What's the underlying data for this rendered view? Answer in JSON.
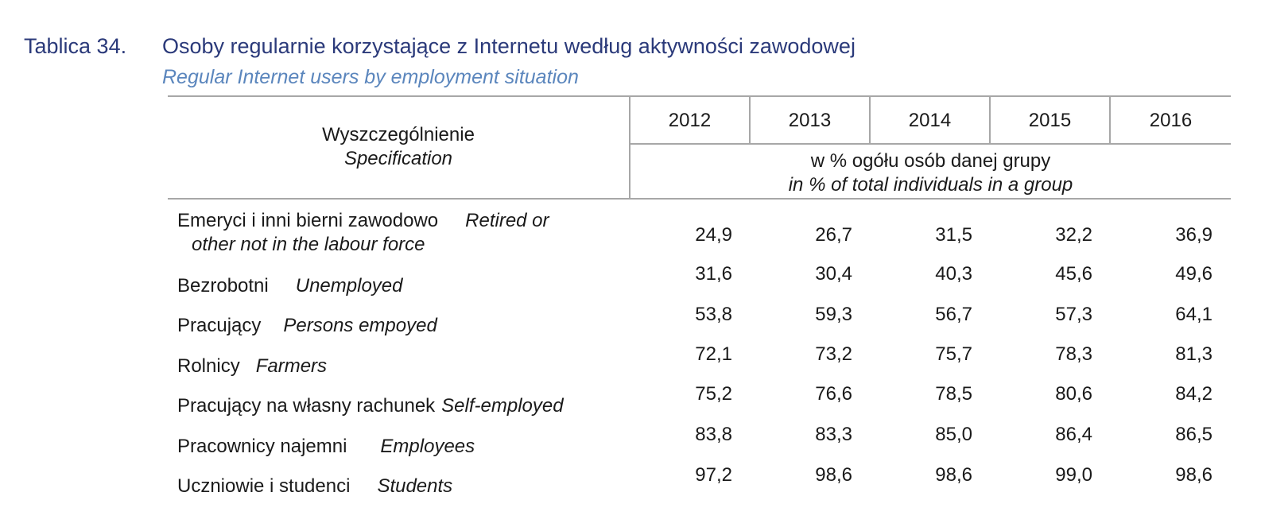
{
  "caption": {
    "number": "Tablica 34.",
    "title": "Osoby regularnie korzystające z Internetu według aktywności zawodowej",
    "subtitle": "Regular Internet users by employment situation"
  },
  "header": {
    "spec_pl": "Wyszczególnienie",
    "spec_en": "Specification",
    "years": [
      "2012",
      "2013",
      "2014",
      "2015",
      "2016"
    ],
    "unit_pl": "w % ogółu osób danej grupy",
    "unit_en": "in % of total individuals in a group"
  },
  "rows": [
    {
      "pl": "Emeryci i inni bierni zawodowo",
      "en": "Retired or",
      "en2": "other not in the labour force",
      "values": [
        "24,9",
        "26,7",
        "31,5",
        "32,2",
        "36,9"
      ]
    },
    {
      "pl": "Bezrobotni",
      "en": "Unemployed",
      "values": [
        "31,6",
        "30,4",
        "40,3",
        "45,6",
        "49,6"
      ]
    },
    {
      "pl": "Pracujący",
      "en": "Persons empoyed",
      "values": [
        "53,8",
        "59,3",
        "56,7",
        "57,3",
        "64,1"
      ]
    },
    {
      "pl": "Rolnicy",
      "en": "Farmers",
      "values": [
        "72,1",
        "73,2",
        "75,7",
        "78,3",
        "81,3"
      ]
    },
    {
      "pl": "Pracujący na własny rachunek",
      "en": "Self-employed",
      "values": [
        "75,2",
        "76,6",
        "78,5",
        "80,6",
        "84,2"
      ]
    },
    {
      "pl": "Pracownicy najemni",
      "en": "Employees",
      "values": [
        "83,8",
        "83,3",
        "85,0",
        "86,4",
        "86,5"
      ]
    },
    {
      "pl": "Uczniowie i studenci",
      "en": "Students",
      "values": [
        "97,2",
        "98,6",
        "98,6",
        "99,0",
        "98,6"
      ]
    }
  ]
}
